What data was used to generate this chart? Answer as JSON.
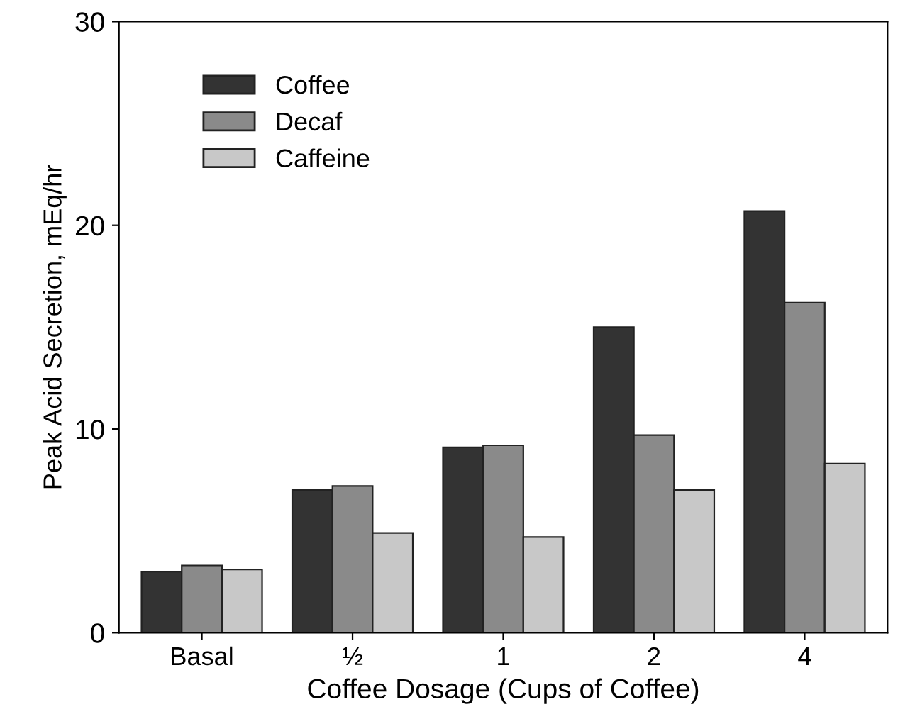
{
  "chart_data": {
    "type": "bar",
    "xlabel": "Coffee Dosage (Cups of Coffee)",
    "ylabel": "Peak Acid Secretion, mEq/hr",
    "categories": [
      "Basal",
      "½",
      "1",
      "2",
      "4"
    ],
    "series": [
      {
        "name": "Coffee",
        "color": "#333333",
        "values": [
          3.0,
          7.0,
          9.1,
          15.0,
          20.7
        ]
      },
      {
        "name": "Decaf",
        "color": "#8a8a8a",
        "values": [
          3.3,
          7.2,
          9.2,
          9.7,
          16.2
        ]
      },
      {
        "name": "Caffeine",
        "color": "#c8c8c8",
        "values": [
          3.1,
          4.9,
          4.7,
          7.0,
          8.3
        ]
      }
    ],
    "ylim": [
      0,
      30
    ],
    "yticks": [
      0,
      10,
      20,
      30
    ],
    "grid": false,
    "legend": "top left"
  }
}
